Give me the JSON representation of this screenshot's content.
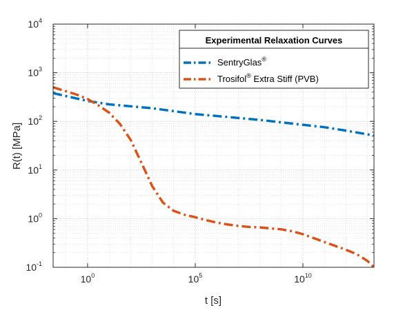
{
  "chart_data": {
    "type": "line",
    "title": "",
    "xlabel": "t [s]",
    "ylabel": "R(t) [MPa]",
    "xscale": "log",
    "yscale": "log",
    "xlim_log10": [
      -1.6,
      13.3
    ],
    "ylim_log10": [
      -1,
      4
    ],
    "grid": true,
    "minor_grid": true,
    "x_ticks": [
      {
        "base": "10",
        "exp": "0",
        "log": 0
      },
      {
        "base": "10",
        "exp": "5",
        "log": 5
      },
      {
        "base": "10",
        "exp": "10",
        "log": 10
      }
    ],
    "y_ticks": [
      {
        "base": "10",
        "exp": "-1",
        "log": -1
      },
      {
        "base": "10",
        "exp": "0",
        "log": 0
      },
      {
        "base": "10",
        "exp": "1",
        "log": 1
      },
      {
        "base": "10",
        "exp": "2",
        "log": 2
      },
      {
        "base": "10",
        "exp": "3",
        "log": 3
      },
      {
        "base": "10",
        "exp": "4",
        "log": 4
      }
    ],
    "legend": {
      "title": "Experimental Relaxation Curves",
      "placement": "top-right",
      "entries": [
        {
          "name": "SentryGlas",
          "sup": "®",
          "suffix": ""
        },
        {
          "name": "Trosifol",
          "sup": "®",
          "suffix": " Extra Stiff (PVB)"
        }
      ]
    },
    "series": [
      {
        "name": "SentryGlas® ",
        "color": "#0072BD",
        "style": "dash-dot",
        "log_t": [
          -1.6,
          -1,
          0,
          1,
          2,
          3,
          4,
          5,
          6,
          7,
          8,
          9,
          10,
          11,
          12,
          13.3
        ],
        "log_R": [
          2.58,
          2.52,
          2.42,
          2.35,
          2.31,
          2.27,
          2.21,
          2.15,
          2.11,
          2.07,
          2.03,
          1.98,
          1.93,
          1.88,
          1.81,
          1.71
        ]
      },
      {
        "name": "Trosifol® Extra Stiff (PVB)",
        "color": "#D95319",
        "style": "dash-dot",
        "log_t": [
          -1.6,
          -1,
          -0.5,
          0,
          0.5,
          1,
          1.5,
          2,
          2.5,
          3,
          3.5,
          4,
          4.5,
          5,
          5.5,
          6,
          6.5,
          7,
          7.5,
          8,
          8.5,
          9,
          9.5,
          10,
          10.5,
          11,
          11.5,
          12,
          12.5,
          13,
          13.3
        ],
        "log_R": [
          2.7,
          2.62,
          2.55,
          2.46,
          2.33,
          2.18,
          1.95,
          1.62,
          1.15,
          0.67,
          0.33,
          0.16,
          0.08,
          0.03,
          -0.03,
          -0.08,
          -0.12,
          -0.15,
          -0.17,
          -0.18,
          -0.2,
          -0.22,
          -0.26,
          -0.32,
          -0.4,
          -0.48,
          -0.56,
          -0.64,
          -0.73,
          -0.87,
          -1.0
        ]
      }
    ]
  }
}
